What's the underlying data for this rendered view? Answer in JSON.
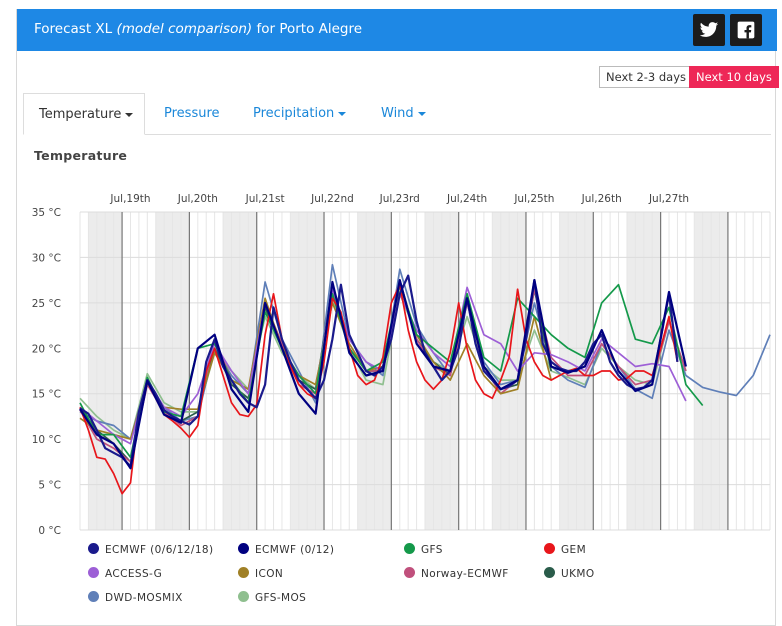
{
  "header": {
    "title_prefix": "Forecast XL ",
    "title_em": "(model comparison)",
    "title_suffix": " for Porto Alegre",
    "twitter_icon": "twitter-icon",
    "facebook_icon": "facebook-icon"
  },
  "range_buttons": {
    "short": "Next 2-3 days",
    "long": "Next 10 days",
    "active_color": "#ee2757"
  },
  "tabs": [
    {
      "label": "Temperature",
      "active": true,
      "dropdown": true
    },
    {
      "label": "Pressure",
      "active": false,
      "dropdown": false
    },
    {
      "label": "Precipitation",
      "active": false,
      "dropdown": true
    },
    {
      "label": "Wind",
      "active": false,
      "dropdown": true
    }
  ],
  "section_title": "Temperature",
  "chart_data": {
    "type": "line",
    "title": "Temperature",
    "xlabel": "",
    "ylabel": "",
    "ylim": [
      0,
      35
    ],
    "yticks": [
      "0 °C",
      "5 °C",
      "10 °C",
      "15 °C",
      "20 °C",
      "25 °C",
      "30 °C",
      "35 °C"
    ],
    "x_hours_range": [
      0,
      246
    ],
    "x_unit": "hours from start of forecast (3-hourly)",
    "day_labels": [
      {
        "label": "Jul,19th",
        "hour": 18
      },
      {
        "label": "Jul,20th",
        "hour": 42
      },
      {
        "label": "Jul,21st",
        "hour": 66
      },
      {
        "label": "Jul,22nd",
        "hour": 90
      },
      {
        "label": "Jul,23rd",
        "hour": 114
      },
      {
        "label": "Jul,24th",
        "hour": 138
      },
      {
        "label": "Jul,25th",
        "hour": 162
      },
      {
        "label": "Jul,26th",
        "hour": 186
      },
      {
        "label": "Jul,27th",
        "hour": 210
      }
    ],
    "day_separators_hours": [
      15,
      39,
      63,
      87,
      111,
      135,
      159,
      183,
      207,
      231
    ],
    "night_bands_hours": [
      [
        3,
        15
      ],
      [
        27,
        39
      ],
      [
        51,
        63
      ],
      [
        75,
        87
      ],
      [
        99,
        111
      ],
      [
        123,
        135
      ],
      [
        147,
        159
      ],
      [
        171,
        183
      ],
      [
        195,
        207
      ],
      [
        219,
        231
      ]
    ],
    "grid": true,
    "legend_position": "bottom",
    "series": [
      {
        "name": "ECMWF (0/6/12/18)",
        "color": "#1a1a8c",
        "x": [
          0,
          3,
          6,
          9,
          12,
          15,
          18,
          21,
          24,
          27,
          30,
          33,
          36,
          39,
          42,
          45,
          48,
          51,
          54,
          57,
          60,
          63,
          66,
          69,
          72,
          75,
          78,
          81,
          84,
          87,
          90,
          93,
          96,
          99,
          102,
          105,
          108,
          111,
          114,
          117,
          120,
          123,
          126,
          129,
          132,
          135,
          138,
          141,
          144,
          147,
          150,
          153,
          156,
          159,
          162,
          165,
          168,
          171,
          174,
          177,
          180,
          183,
          186,
          189,
          192,
          195,
          198,
          201,
          204,
          207,
          210,
          213
        ],
        "y": [
          13.4,
          12.8,
          11.0,
          9.0,
          8.5,
          8.0,
          7.0,
          13.0,
          16.5,
          15.0,
          13.2,
          12.5,
          12.0,
          11.6,
          12.5,
          18.5,
          21.0,
          18.0,
          16.5,
          15.0,
          14.0,
          13.5,
          16.0,
          24.5,
          21.0,
          18.5,
          16.5,
          15.5,
          14.5,
          16.5,
          21.0,
          27.0,
          21.5,
          19.5,
          17.5,
          17.0,
          18.0,
          21.0,
          26.0,
          28.0,
          23.0,
          19.5,
          18.0,
          16.5,
          17.5,
          20.0,
          25.5,
          20.5,
          17.5,
          16.5,
          15.5,
          15.8,
          16.5,
          21.0,
          27.5,
          20.5,
          18.5,
          17.8,
          17.5,
          17.5,
          18.5,
          20.5,
          21.5,
          18.5,
          17.0,
          16.0,
          15.5,
          15.7,
          16.5,
          21.0,
          26.0,
          18.5
        ]
      },
      {
        "name": "ECMWF (0/12)",
        "color": "#000080",
        "x": [
          0,
          6,
          12,
          18,
          24,
          30,
          36,
          42,
          48,
          54,
          60,
          66,
          72,
          78,
          84,
          90,
          96,
          102,
          108,
          114,
          120,
          126,
          132,
          138,
          144,
          150,
          156,
          162,
          168,
          174,
          180,
          186,
          192,
          198,
          204,
          210,
          216
        ],
        "y": [
          13.3,
          10.5,
          9.5,
          6.8,
          16.4,
          12.7,
          11.8,
          20.0,
          21.5,
          15.5,
          13.0,
          25.0,
          20.0,
          15.0,
          12.8,
          27.3,
          19.5,
          17.0,
          17.5,
          27.5,
          20.5,
          18.0,
          17.5,
          25.5,
          18.0,
          15.5,
          16.5,
          27.5,
          18.0,
          17.3,
          18.0,
          22.0,
          17.5,
          15.3,
          16.0,
          26.2,
          18.0
        ]
      },
      {
        "name": "GFS",
        "color": "#14994a",
        "x": [
          0,
          6,
          12,
          18,
          24,
          30,
          36,
          42,
          48,
          54,
          60,
          66,
          72,
          78,
          84,
          90,
          96,
          102,
          108,
          114,
          120,
          126,
          132,
          138,
          144,
          150,
          156,
          162,
          168,
          174,
          180,
          186,
          192,
          198,
          204,
          210,
          216,
          222
        ],
        "y": [
          14.0,
          10.5,
          10.5,
          8.0,
          16.8,
          13.0,
          12.5,
          20.0,
          20.5,
          16.5,
          14.0,
          24.0,
          20.0,
          17.0,
          15.0,
          26.0,
          20.0,
          17.5,
          18.5,
          27.0,
          21.5,
          20.0,
          18.5,
          26.0,
          19.0,
          17.5,
          25.5,
          23.5,
          21.5,
          20.0,
          19.0,
          25.0,
          27.0,
          21.0,
          20.5,
          24.5,
          16.0,
          13.7
        ]
      },
      {
        "name": "GEM",
        "color": "#e8161b",
        "x": [
          0,
          3,
          6,
          9,
          12,
          15,
          18,
          21,
          24,
          27,
          30,
          33,
          36,
          39,
          42,
          45,
          48,
          51,
          54,
          57,
          60,
          63,
          66,
          69,
          72,
          75,
          78,
          81,
          84,
          87,
          90,
          93,
          96,
          99,
          102,
          105,
          108,
          111,
          114,
          117,
          120,
          123,
          126,
          129,
          132,
          135,
          138,
          141,
          144,
          147,
          150,
          153,
          156,
          159,
          162,
          165,
          168,
          171,
          174,
          177,
          180,
          183,
          186,
          189,
          192,
          195,
          198,
          201,
          204,
          207,
          210,
          213
        ],
        "y": [
          13.5,
          11.0,
          8.0,
          7.8,
          6.2,
          4.0,
          5.2,
          13.0,
          16.5,
          14.5,
          12.7,
          12.0,
          11.2,
          10.2,
          11.5,
          17.5,
          20.0,
          17.0,
          14.0,
          12.7,
          12.5,
          13.8,
          21.5,
          26.0,
          21.0,
          18.0,
          16.0,
          15.0,
          14.5,
          18.5,
          25.5,
          24.0,
          20.0,
          17.0,
          16.0,
          16.5,
          19.0,
          25.0,
          27.0,
          22.0,
          18.5,
          16.5,
          15.5,
          16.5,
          19.5,
          25.0,
          20.0,
          16.5,
          15.0,
          14.5,
          16.5,
          19.0,
          26.5,
          21.0,
          18.5,
          17.0,
          16.5,
          17.0,
          17.5,
          17.8,
          17.0,
          17.0,
          17.5,
          17.5,
          16.5,
          16.7,
          17.5,
          17.5,
          17.0,
          20.0,
          23.5,
          18.5
        ]
      },
      {
        "name": "ACCESS-G",
        "color": "#9d5fd6",
        "x": [
          0,
          6,
          12,
          18,
          24,
          30,
          36,
          42,
          48,
          54,
          60,
          66,
          72,
          78,
          84,
          90,
          96,
          102,
          108,
          114,
          120,
          126,
          132,
          138,
          144,
          150,
          156,
          162,
          168,
          174,
          180,
          186,
          192,
          198,
          204,
          210,
          216
        ],
        "y": [
          13.5,
          12.0,
          10.5,
          9.5,
          16.5,
          13.5,
          12.5,
          15.0,
          20.5,
          17.5,
          15.0,
          25.0,
          20.0,
          17.0,
          15.0,
          26.5,
          21.0,
          18.5,
          17.5,
          26.0,
          22.0,
          19.5,
          18.0,
          26.7,
          21.5,
          20.5,
          17.5,
          19.5,
          19.3,
          18.5,
          17.5,
          21.0,
          19.5,
          18.0,
          18.3,
          18.0,
          14.2
        ]
      },
      {
        "name": "ICON",
        "color": "#a08026",
        "x": [
          0,
          6,
          12,
          18,
          24,
          30,
          36,
          42,
          48,
          54,
          60,
          66,
          72,
          78,
          84,
          90,
          96,
          102,
          108,
          114,
          120,
          126,
          132,
          138,
          144,
          150,
          156,
          162,
          168
        ],
        "y": [
          12.3,
          11.0,
          10.5,
          10.0,
          16.2,
          13.5,
          13.3,
          13.3,
          19.5,
          16.5,
          15.5,
          25.5,
          20.0,
          17.0,
          16.0,
          25.0,
          20.5,
          17.5,
          18.0,
          27.0,
          21.5,
          18.5,
          16.5,
          20.5,
          17.0,
          15.0,
          15.5,
          23.5,
          16.5
        ]
      },
      {
        "name": "Norway-ECMWF",
        "color": "#c0507c",
        "x": [
          0,
          6,
          12,
          18,
          24,
          30,
          36,
          42,
          48,
          54,
          60,
          66,
          72,
          78,
          84,
          90,
          96,
          102,
          108,
          114,
          120,
          126,
          132,
          138,
          144,
          150,
          156,
          162,
          168,
          174,
          180,
          186,
          192,
          198,
          204,
          210,
          216
        ],
        "y": [
          13.2,
          10.0,
          9.0,
          7.5,
          16.0,
          13.0,
          11.5,
          12.5,
          21.0,
          16.5,
          14.0,
          25.0,
          20.5,
          16.0,
          15.0,
          26.5,
          20.0,
          17.5,
          17.5,
          27.0,
          21.0,
          18.0,
          17.0,
          25.0,
          18.0,
          15.0,
          16.5,
          26.5,
          19.0,
          17.0,
          17.0,
          20.5,
          18.0,
          16.0,
          16.5,
          23.0,
          17.5
        ]
      },
      {
        "name": "UKMO",
        "color": "#2a5c4a",
        "x": [
          0,
          6,
          12,
          18,
          24,
          30,
          36,
          42,
          48,
          54,
          60,
          66,
          72,
          78,
          84,
          90,
          96,
          102,
          108,
          114,
          120,
          126,
          132,
          138,
          144,
          150,
          156,
          162,
          168
        ],
        "y": [
          13.4,
          11.0,
          9.5,
          7.5,
          16.2,
          13.0,
          12.0,
          13.0,
          20.0,
          16.0,
          14.5,
          24.5,
          20.0,
          16.5,
          15.5,
          26.5,
          20.0,
          17.5,
          17.5,
          27.5,
          21.0,
          18.5,
          17.0,
          25.5,
          18.0,
          15.5,
          16.0,
          26.5,
          17.5
        ]
      },
      {
        "name": "DWD-MOSMIX",
        "color": "#5f7fb8",
        "x": [
          0,
          6,
          12,
          18,
          24,
          30,
          36,
          42,
          48,
          54,
          60,
          66,
          72,
          78,
          84,
          90,
          96,
          102,
          108,
          114,
          120,
          126,
          132,
          138,
          144,
          150,
          156,
          162,
          168,
          174,
          180,
          186,
          192,
          198,
          204,
          210,
          216,
          222,
          228,
          234,
          240,
          246
        ],
        "y": [
          13.0,
          12.0,
          11.5,
          10.0,
          16.5,
          13.5,
          12.0,
          12.5,
          20.0,
          17.0,
          15.0,
          27.3,
          21.0,
          17.5,
          14.0,
          29.2,
          21.0,
          18.5,
          17.0,
          28.7,
          22.5,
          19.5,
          17.0,
          26.0,
          18.5,
          16.0,
          16.5,
          25.0,
          18.0,
          16.5,
          15.7,
          20.5,
          18.0,
          15.5,
          14.5,
          22.0,
          17.0,
          15.7,
          15.2,
          14.8,
          17.0,
          21.5
        ]
      },
      {
        "name": "GFS-MOS",
        "color": "#8fbf8f",
        "x": [
          0,
          6,
          12,
          18,
          24,
          30,
          36,
          42,
          48,
          54,
          60,
          66,
          72,
          78,
          84,
          90,
          96,
          102,
          108,
          114,
          120,
          126,
          132,
          138,
          144,
          150,
          156,
          162,
          168,
          174,
          180,
          186,
          192,
          198,
          204,
          210,
          216
        ],
        "y": [
          14.5,
          12.5,
          11.0,
          10.0,
          17.2,
          14.0,
          13.0,
          13.0,
          19.5,
          17.5,
          15.5,
          23.5,
          19.5,
          17.0,
          15.5,
          25.5,
          20.0,
          16.5,
          16.0,
          26.0,
          21.5,
          18.5,
          17.5,
          23.5,
          18.0,
          16.5,
          16.5,
          22.0,
          17.5,
          16.8,
          16.0,
          20.0,
          18.0,
          16.5,
          16.0,
          23.0,
          17.5
        ]
      }
    ]
  }
}
